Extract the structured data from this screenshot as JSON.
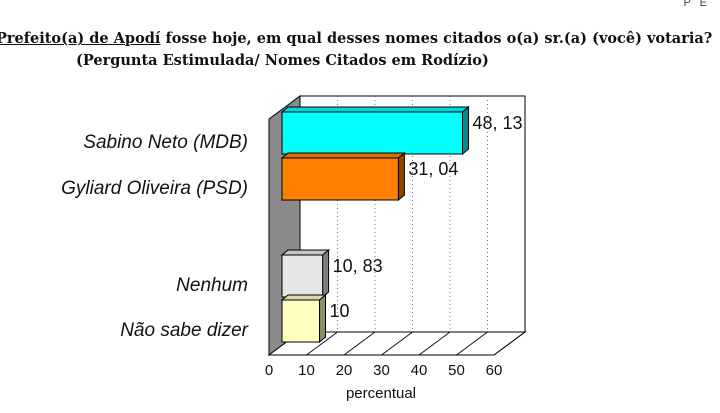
{
  "header": {
    "corner_text": "P E",
    "title_line1_prefix": "Prefeito(a) de Apodí",
    "title_line1_rest": " fosse hoje, em qual desses nomes citados o(a) sr.(a) (você) votaria?",
    "title_line2": "(Pergunta Estimulada/ Nomes Citados em Rodízio)"
  },
  "chart_data": {
    "type": "bar",
    "orientation": "horizontal",
    "categories": [
      "Sabino Neto (MDB)",
      "Gyliard Oliveira (PSD)",
      "Nenhum",
      "Não sabe dizer"
    ],
    "values": [
      48.13,
      31.04,
      10.83,
      10
    ],
    "value_labels": [
      "48, 13",
      "31, 04",
      "10, 83",
      "10"
    ],
    "colors": [
      "#00FFFF",
      "#FF7F00",
      "#E6E6E6",
      "#FFFFC0"
    ],
    "xlabel": "percentual",
    "ylabel": "",
    "xlim": [
      0,
      60
    ],
    "xticks": [
      "0",
      "10",
      "20",
      "30",
      "40",
      "50",
      "60"
    ],
    "grid": true,
    "legend": "none"
  }
}
